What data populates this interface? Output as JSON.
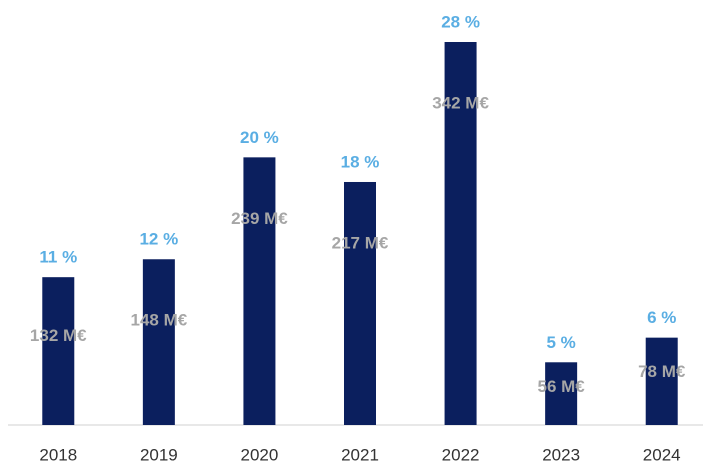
{
  "chart_data": {
    "type": "bar",
    "categories": [
      "2018",
      "2019",
      "2020",
      "2021",
      "2022",
      "2023",
      "2024"
    ],
    "values": [
      132,
      148,
      239,
      217,
      342,
      56,
      78
    ],
    "value_labels": [
      "132 M€",
      "148 M€",
      "239 M€",
      "217 M€",
      "342 M€",
      "56 M€",
      "78 M€"
    ],
    "shares": [
      11,
      12,
      20,
      18,
      28,
      5,
      6
    ],
    "share_labels": [
      "11 %",
      "12 %",
      "20 %",
      "18 %",
      "28 %",
      "5 %",
      "6 %"
    ],
    "color": "#0b1f5e",
    "value_label_color": "#a6a6a6",
    "share_label_color": "#5aaee3"
  }
}
